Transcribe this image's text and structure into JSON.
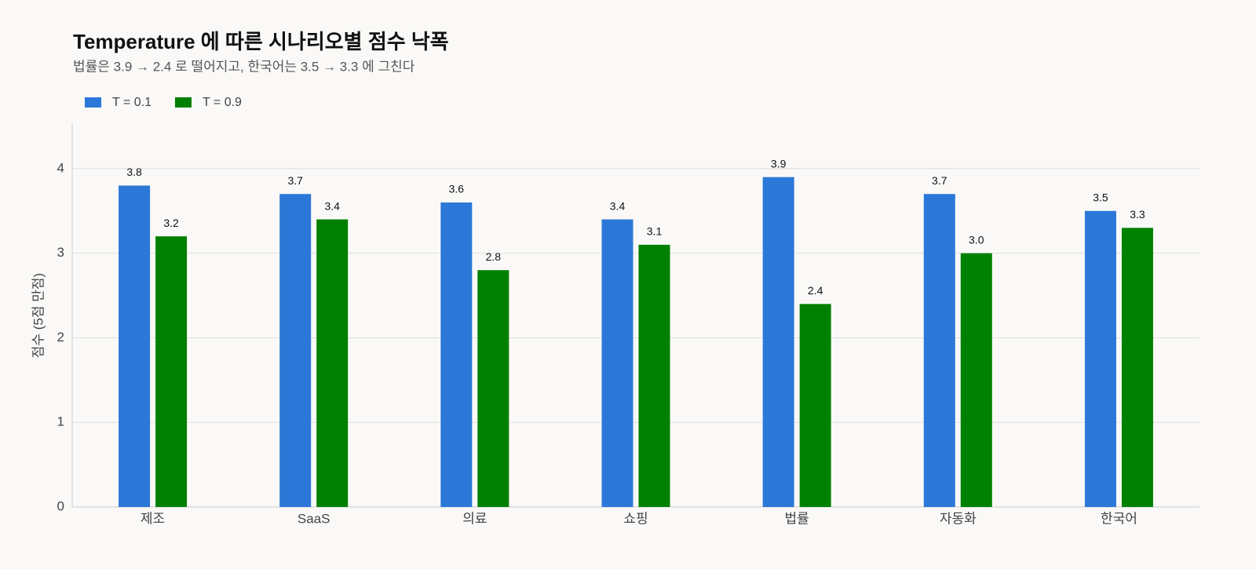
{
  "chart_data": {
    "type": "bar",
    "title": "Temperature 에 따른 시나리오별 점수 낙폭",
    "subtitle": "법률은 3.9 → 2.4 로 떨어지고, 한국어는 3.5 → 3.3 에 그친다",
    "y_label": "점수 (5점 만점)",
    "categories": [
      "제조",
      "SaaS",
      "의료",
      "쇼핑",
      "법률",
      "자동화",
      "한국어"
    ],
    "series": [
      {
        "name": "T = 0.1",
        "color": "#2b78d8",
        "values": [
          3.8,
          3.7,
          3.6,
          3.4,
          3.9,
          3.7,
          3.5
        ],
        "value_labels": [
          "3.8",
          "3.7",
          "3.6",
          "3.4",
          "3.9",
          "3.7",
          "3.5"
        ]
      },
      {
        "name": "T = 0.9",
        "color": "#008000",
        "values": [
          3.2,
          3.4,
          2.8,
          3.1,
          2.4,
          3.0,
          3.3
        ],
        "value_labels": [
          "3.2",
          "3.4",
          "2.8",
          "3.1",
          "2.4",
          "3.0",
          "3.3"
        ]
      }
    ],
    "ylim": [
      0,
      4.5
    ],
    "yticks": [
      0,
      1,
      2,
      3,
      4
    ],
    "grid": true,
    "legend": "top-left"
  }
}
